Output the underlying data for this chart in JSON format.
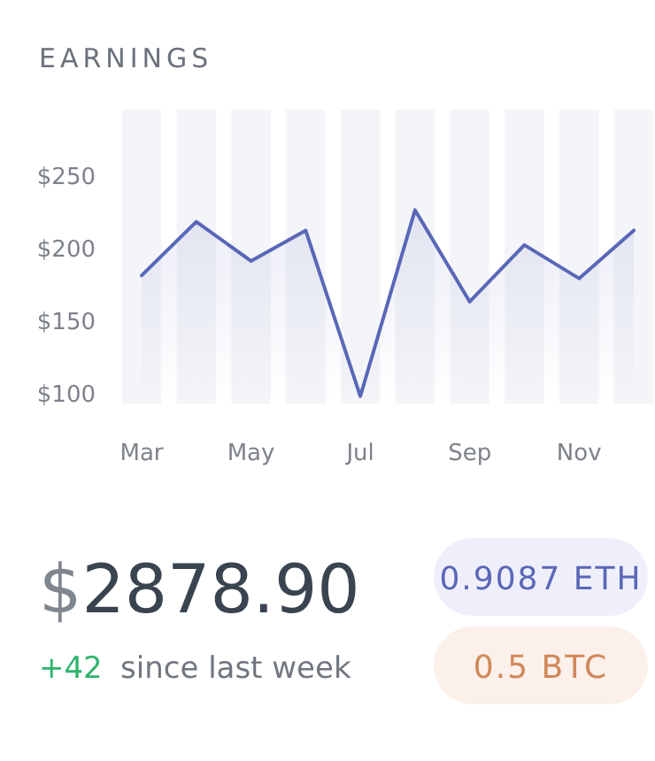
{
  "chart_data": {
    "type": "area",
    "title": "EARNINGS",
    "categories": [
      "Mar",
      null,
      "May",
      null,
      "Jul",
      null,
      "Sep",
      null,
      "Nov",
      null
    ],
    "series": [
      {
        "color": "#5a67b8",
        "values": [
          181,
          218,
          191,
          212,
          98,
          226,
          163,
          202,
          179,
          212
        ]
      }
    ],
    "ylim": [
      93,
      295
    ],
    "yticks": [
      {
        "value": 100,
        "label": "$100"
      },
      {
        "value": 150,
        "label": "$150"
      },
      {
        "value": 200,
        "label": "$200"
      },
      {
        "value": 250,
        "label": "$250"
      }
    ],
    "grid": false,
    "marker": "none",
    "line_style": "solid",
    "annotations": [
      "$2878.90",
      "+42",
      "since last week",
      "0.9087 ETH",
      "0.5 BTC"
    ]
  }
}
